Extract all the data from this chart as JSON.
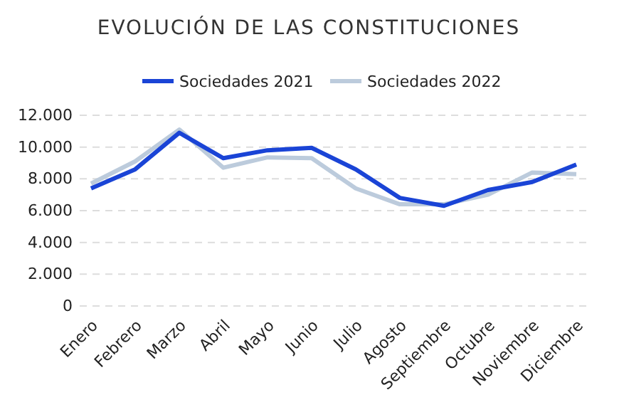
{
  "chart_data": {
    "type": "line",
    "title": "EVOLUCIÓN DE LAS CONSTITUCIONES",
    "categories": [
      "Enero",
      "Febrero",
      "Marzo",
      "Abril",
      "Mayo",
      "Junio",
      "Julio",
      "Agosto",
      "Septiembre",
      "Octubre",
      "Noviembre",
      "Diciembre"
    ],
    "series": [
      {
        "name": "Sociedades 2021",
        "color": "#1a44d6",
        "values": [
          7400,
          8600,
          10900,
          9300,
          9800,
          9950,
          8600,
          6800,
          6300,
          7300,
          7800,
          8900
        ]
      },
      {
        "name": "Sociedades 2022",
        "color": "#bccbdc",
        "values": [
          7700,
          9100,
          11100,
          8700,
          9350,
          9300,
          7400,
          6400,
          6400,
          7000,
          8400,
          8300
        ]
      }
    ],
    "ylim": [
      0,
      12000
    ],
    "yticks": [
      {
        "value": 0,
        "label": "0"
      },
      {
        "value": 2000,
        "label": "2.000"
      },
      {
        "value": 4000,
        "label": "4.000"
      },
      {
        "value": 6000,
        "label": "6.000"
      },
      {
        "value": 8000,
        "label": "8.000"
      },
      {
        "value": 10000,
        "label": "10.000"
      },
      {
        "value": 12000,
        "label": "12.000"
      }
    ],
    "grid": "y",
    "legend": "top",
    "line_style": "solid",
    "marker": "none"
  }
}
